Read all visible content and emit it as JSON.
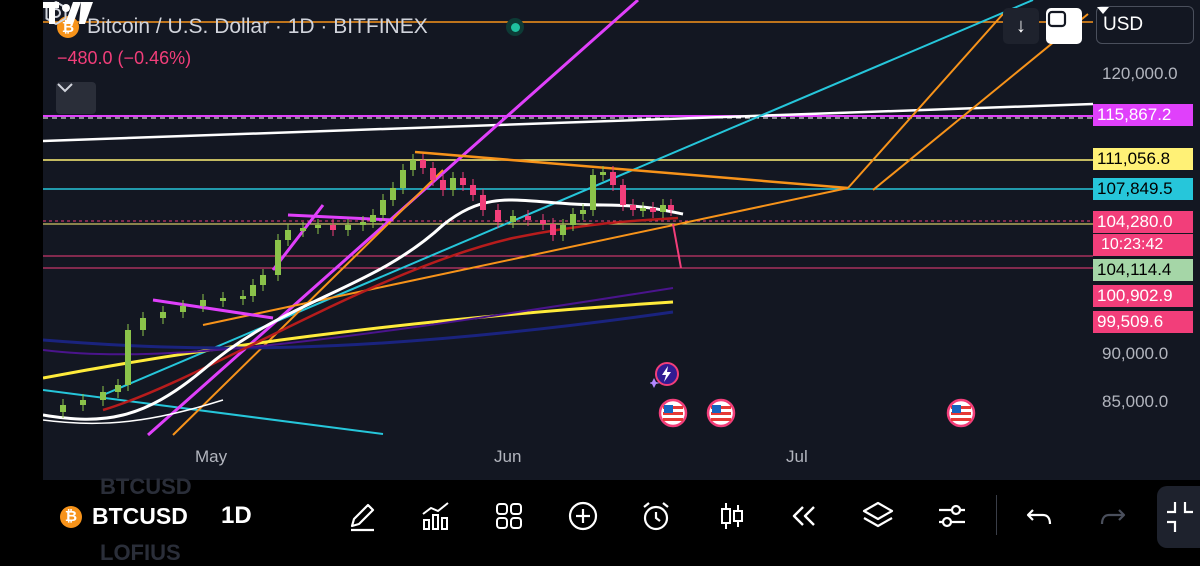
{
  "header": {
    "symbol_title": "Bitcoin / U.S. Dollar · 1D · BITFINEX",
    "price_change": "−480.0 (−0.46%)",
    "currency_select": "USD"
  },
  "price_axis": {
    "levels": [
      "120,000.0",
      "90,000.0",
      "85,000.0"
    ]
  },
  "price_tags": [
    {
      "label": "115,867.2",
      "bg": "#e040fb",
      "fg": "#ffffff"
    },
    {
      "label": "111,056.8",
      "bg": "#fff176",
      "fg": "#000000"
    },
    {
      "label": "107,849.5",
      "bg": "#26c6da",
      "fg": "#000000"
    },
    {
      "label": "104,280.0",
      "bg": "#f23e7a",
      "fg": "#ffffff"
    },
    {
      "label": "104,114.4",
      "bg": "#a5d6a7",
      "fg": "#000000"
    },
    {
      "label": "100,902.9",
      "bg": "#f23e7a",
      "fg": "#ffffff"
    },
    {
      "label": "99,509.6",
      "bg": "#f23e7a",
      "fg": "#ffffff"
    }
  ],
  "countdown": "10:23:42",
  "time_axis": {
    "labels": [
      "May",
      "Jun",
      "Jul"
    ]
  },
  "toolbar": {
    "ticker": "BTCUSD",
    "interval": "1D",
    "ghost_top": "BTCUSD",
    "ghost_bottom": "LOFIUS",
    "tools": [
      "draw-icon",
      "indicators-icon",
      "apps-grid-icon",
      "add-icon",
      "alert-clock-icon",
      "candles-icon",
      "replay-icon",
      "layers-icon",
      "settings-sliders-icon",
      "undo-icon",
      "redo-icon"
    ]
  },
  "colors": {
    "background": "#131722",
    "up": "#8bc34a",
    "down": "#f23e7a",
    "orange": "#f7931a"
  }
}
